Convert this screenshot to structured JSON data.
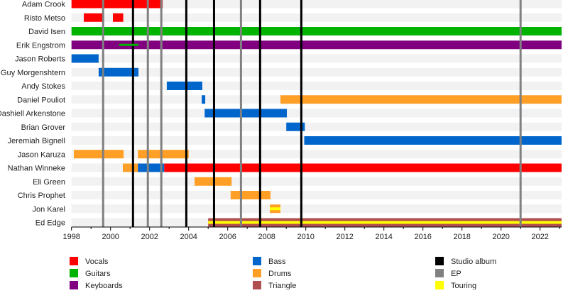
{
  "chart_data": {
    "type": "timeline",
    "xlim": [
      1998,
      2023.1
    ],
    "x_ticks": [
      "1998",
      "2000",
      "2002",
      "2004",
      "2006",
      "2008",
      "2010",
      "2012",
      "2014",
      "2016",
      "2018",
      "2020",
      "2022"
    ],
    "colors": {
      "Vocals": "#ff0000",
      "Guitars": "#00b300",
      "Keyboards": "#800080",
      "Bass": "#0066cc",
      "Drums": "#ff9f26",
      "Triangle": "#b04f4f",
      "Studio album": "#000000",
      "EP": "#808080",
      "Touring": "#ffff00"
    },
    "members": [
      {
        "name": "Adam Crook",
        "bars": [
          {
            "role": "Vocals",
            "start": 1998,
            "end": 2002.67
          }
        ]
      },
      {
        "name": "Risto Metso",
        "bars": [
          {
            "role": "Vocals",
            "start": 1998.63,
            "end": 1999.64
          },
          {
            "role": "Vocals",
            "start": 2000.12,
            "end": 2000.65
          }
        ]
      },
      {
        "name": "David Isen",
        "bars": [
          {
            "role": "Guitars",
            "start": 1998,
            "end": 2023.1
          }
        ]
      },
      {
        "name": "Erik Engstrom",
        "bars": [
          {
            "role": "Keyboards",
            "start": 1998,
            "end": 2023.1
          },
          {
            "role": "Guitars",
            "start": 2000.44,
            "end": 2001.43,
            "thin": true
          }
        ]
      },
      {
        "name": "Jason Roberts",
        "bars": [
          {
            "role": "Bass",
            "start": 1998,
            "end": 1999.39
          }
        ]
      },
      {
        "name": "Guy Morgenshtern",
        "bars": [
          {
            "role": "Bass",
            "start": 1999.39,
            "end": 2001.43
          }
        ]
      },
      {
        "name": "Andy Stokes",
        "bars": [
          {
            "role": "Bass",
            "start": 2002.88,
            "end": 2004.7
          }
        ]
      },
      {
        "name": "Daniel Pouliot",
        "bars": [
          {
            "role": "Bass",
            "start": 2004.67,
            "end": 2004.85
          },
          {
            "role": "Drums",
            "start": 2008.7,
            "end": 2023.1
          }
        ]
      },
      {
        "name": "Dashiell Arkenstone",
        "bars": [
          {
            "role": "Bass",
            "start": 2004.82,
            "end": 2009.03
          }
        ]
      },
      {
        "name": "Brian Grover",
        "bars": [
          {
            "role": "Bass",
            "start": 2009.0,
            "end": 2009.95
          }
        ]
      },
      {
        "name": "Jeremiah Bignell",
        "bars": [
          {
            "role": "Bass",
            "start": 2009.92,
            "end": 2023.1
          }
        ]
      },
      {
        "name": "Jason Karuza",
        "bars": [
          {
            "role": "Drums",
            "start": 1998.12,
            "end": 2000.67
          },
          {
            "role": "Drums",
            "start": 2001.4,
            "end": 2004.0
          }
        ]
      },
      {
        "name": "Nathan Winneke",
        "bars": [
          {
            "role": "Drums",
            "start": 2000.63,
            "end": 2001.4
          },
          {
            "role": "Bass",
            "start": 2001.4,
            "end": 2002.75
          },
          {
            "role": "Vocals",
            "start": 2002.75,
            "end": 2023.1
          }
        ]
      },
      {
        "name": "Eli Green",
        "bars": [
          {
            "role": "Drums",
            "start": 2004.3,
            "end": 2006.2
          }
        ]
      },
      {
        "name": "Chris Prophet",
        "bars": [
          {
            "role": "Drums",
            "start": 2006.15,
            "end": 2008.19
          }
        ]
      },
      {
        "name": "Jon Karel",
        "bars": [
          {
            "role": "Drums",
            "start": 2008.16,
            "end": 2008.7,
            "touring": true
          }
        ]
      },
      {
        "name": "Ed Edge",
        "bars": [
          {
            "role": "Triangle",
            "start": 2005.0,
            "end": 2023.1,
            "touring": true
          }
        ]
      }
    ],
    "releases": [
      {
        "type": "EP",
        "year": 1999.62
      },
      {
        "type": "Studio album",
        "year": 2001.15
      },
      {
        "type": "EP",
        "year": 2001.91
      },
      {
        "type": "EP",
        "year": 2002.6
      },
      {
        "type": "Studio album",
        "year": 2003.88
      },
      {
        "type": "Studio album",
        "year": 2005.3
      },
      {
        "type": "EP",
        "year": 2006.68
      },
      {
        "type": "Studio album",
        "year": 2007.66
      },
      {
        "type": "Studio album",
        "year": 2009.77
      },
      {
        "type": "EP",
        "year": 2021.0
      }
    ],
    "legend": [
      "Vocals",
      "Guitars",
      "Keyboards",
      "Bass",
      "Drums",
      "Triangle",
      "Studio album",
      "EP",
      "Touring"
    ],
    "legend_position": "bottom"
  }
}
